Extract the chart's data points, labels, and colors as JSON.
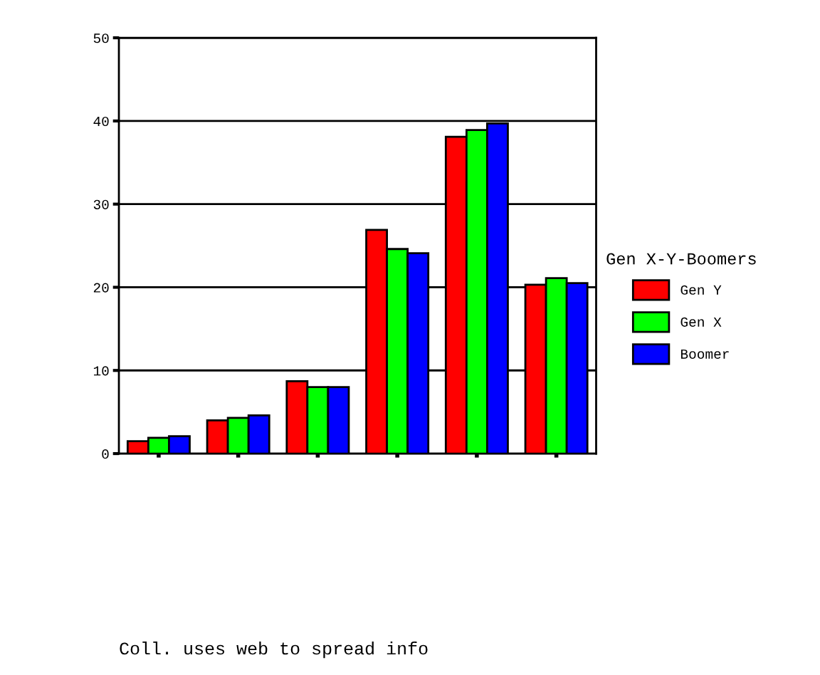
{
  "chart_data": {
    "type": "bar",
    "categories": [
      null,
      null,
      null,
      null,
      null,
      null
    ],
    "series": [
      {
        "name": "Gen Y",
        "color": "#ff0000",
        "values": [
          1.5,
          4.0,
          8.7,
          26.9,
          38.1,
          20.3
        ]
      },
      {
        "name": "Gen X",
        "color": "#00ff00",
        "values": [
          1.9,
          4.3,
          8.0,
          24.6,
          38.9,
          21.1
        ]
      },
      {
        "name": "Boomer",
        "color": "#0000ff",
        "values": [
          2.1,
          4.6,
          8.0,
          24.1,
          39.7,
          20.5
        ]
      }
    ],
    "legend_title": "Gen X-Y-Boomers",
    "legend": "right",
    "grid": "y",
    "ylim": [
      0,
      50
    ],
    "yticks": [
      0,
      10,
      20,
      30,
      40,
      50
    ],
    "annotations": [
      "Coll. uses web to spread info"
    ]
  }
}
